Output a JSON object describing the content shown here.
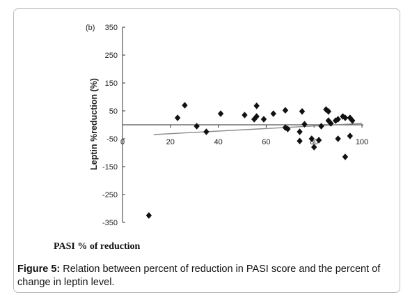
{
  "chart_data": {
    "type": "scatter",
    "panel_label": "(b)",
    "xlabel": "PASI % of reduction",
    "ylabel": "Leptin %reduction (%)",
    "xlim": [
      0,
      100
    ],
    "ylim": [
      -350,
      350
    ],
    "xticks": [
      0,
      20,
      40,
      60,
      80,
      100
    ],
    "yticks": [
      350,
      250,
      150,
      50,
      -50,
      -150,
      -250,
      -350
    ],
    "grid": false,
    "trendline": {
      "x": [
        13,
        100
      ],
      "y": [
        -35,
        5
      ]
    },
    "reference_line_y": 0,
    "points": [
      {
        "x": 11,
        "y": -325
      },
      {
        "x": 23,
        "y": 25
      },
      {
        "x": 26,
        "y": 70
      },
      {
        "x": 31,
        "y": -5
      },
      {
        "x": 35,
        "y": -25
      },
      {
        "x": 41,
        "y": 40
      },
      {
        "x": 51,
        "y": 35
      },
      {
        "x": 55,
        "y": 20
      },
      {
        "x": 56,
        "y": 68
      },
      {
        "x": 56,
        "y": 30
      },
      {
        "x": 59,
        "y": 20
      },
      {
        "x": 63,
        "y": 40
      },
      {
        "x": 68,
        "y": 52
      },
      {
        "x": 68,
        "y": -10
      },
      {
        "x": 69,
        "y": -15
      },
      {
        "x": 74,
        "y": -25
      },
      {
        "x": 75,
        "y": 48
      },
      {
        "x": 74,
        "y": -58
      },
      {
        "x": 76,
        "y": 2
      },
      {
        "x": 79,
        "y": -50
      },
      {
        "x": 80,
        "y": -80
      },
      {
        "x": 82,
        "y": -55
      },
      {
        "x": 83,
        "y": -5
      },
      {
        "x": 85,
        "y": 55
      },
      {
        "x": 86,
        "y": 48
      },
      {
        "x": 86,
        "y": 15
      },
      {
        "x": 87,
        "y": 5
      },
      {
        "x": 89,
        "y": 15
      },
      {
        "x": 90,
        "y": 20
      },
      {
        "x": 92,
        "y": 30
      },
      {
        "x": 93,
        "y": 25
      },
      {
        "x": 95,
        "y": 25
      },
      {
        "x": 96,
        "y": 15
      },
      {
        "x": 95,
        "y": -40
      },
      {
        "x": 90,
        "y": -50
      },
      {
        "x": 93,
        "y": -115
      }
    ]
  },
  "caption": {
    "label": "Figure 5:",
    "text": " Relation between percent of reduction in PASI score and the percent of change in leptin level."
  }
}
